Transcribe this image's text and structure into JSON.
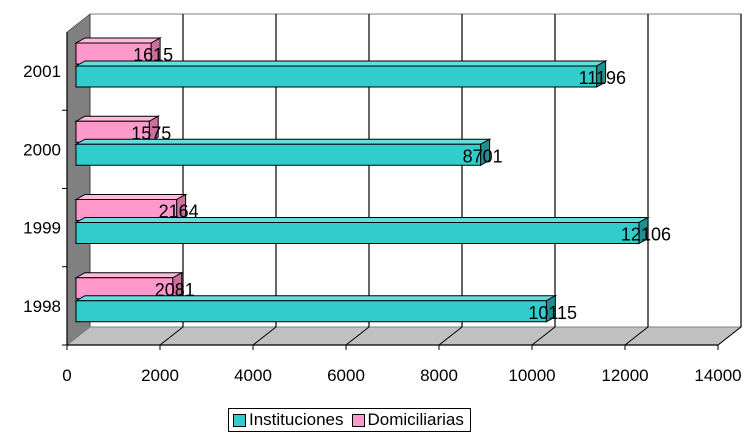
{
  "chart_data": {
    "type": "bar",
    "orientation": "horizontal",
    "categories": [
      "1998",
      "1999",
      "2000",
      "2001"
    ],
    "series": [
      {
        "name": "Instituciones",
        "values": [
          10115,
          12106,
          8701,
          11196
        ],
        "color": "#33CCCC"
      },
      {
        "name": "Domiciliarias",
        "values": [
          2081,
          2164,
          1575,
          1615
        ],
        "color": "#FF99CC"
      }
    ],
    "title": "",
    "xlabel": "",
    "ylabel": "",
    "xlim": [
      0,
      14000
    ],
    "x_ticks": [
      "0",
      "2000",
      "4000",
      "6000",
      "8000",
      "10000",
      "12000",
      "14000"
    ],
    "grid": "vertical",
    "legend_position": "bottom",
    "style": "3d"
  }
}
